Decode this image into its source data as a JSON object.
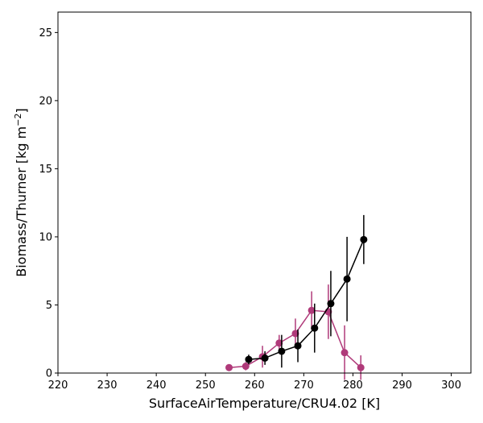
{
  "chart_data": {
    "type": "scatter",
    "title": "",
    "xlabel": "SurfaceAirTemperature/CRU4.02 [K]",
    "ylabel_main": "Biomass/Thurner [kg m",
    "ylabel_sup": "−2",
    "ylabel_end": "]",
    "xlim": [
      220,
      304
    ],
    "ylim": [
      0,
      26.5
    ],
    "xticks": [
      220,
      230,
      240,
      250,
      260,
      270,
      280,
      290,
      300
    ],
    "yticks": [
      0,
      5,
      10,
      15,
      20,
      25
    ],
    "grid": false,
    "legend": "none",
    "series": [
      {
        "color": "#b03a7a",
        "x": [
          254.8,
          258.2,
          261.6,
          265.0,
          268.3,
          271.6,
          275.0,
          278.3,
          281.6
        ],
        "y": [
          0.4,
          0.5,
          1.2,
          2.2,
          2.9,
          4.6,
          4.5,
          1.5,
          0.4
        ],
        "yerr": [
          0.25,
          0.3,
          0.8,
          0.6,
          1.1,
          1.4,
          2.0,
          2.0,
          0.9
        ]
      },
      {
        "color": "#000000",
        "x": [
          258.8,
          262.1,
          265.5,
          268.8,
          272.2,
          275.5,
          278.8,
          282.2
        ],
        "y": [
          1.0,
          1.1,
          1.6,
          2.0,
          3.3,
          5.1,
          6.9,
          9.8
        ],
        "yerr": [
          0.35,
          0.5,
          1.2,
          1.2,
          1.8,
          2.4,
          3.1,
          1.8
        ]
      }
    ]
  }
}
